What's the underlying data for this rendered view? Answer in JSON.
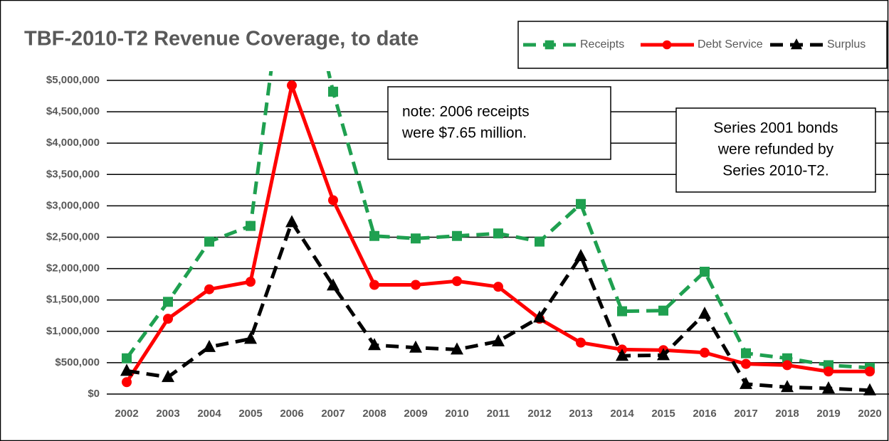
{
  "chart_data": {
    "type": "line",
    "title": "TBF-2010-T2 Revenue Coverage, to date",
    "categories": [
      "2002",
      "2003",
      "2004",
      "2005",
      "2006",
      "2007",
      "2008",
      "2009",
      "2010",
      "2011",
      "2012",
      "2013",
      "2014",
      "2015",
      "2016",
      "2017",
      "2018",
      "2019",
      "2020"
    ],
    "series": [
      {
        "name": "Receipts",
        "color": "#1fa050",
        "dash": true,
        "marker": "square",
        "values": [
          570000,
          1470000,
          2430000,
          2680000,
          7650000,
          4820000,
          2520000,
          2480000,
          2520000,
          2560000,
          2430000,
          3030000,
          1320000,
          1330000,
          1950000,
          650000,
          570000,
          460000,
          420000
        ]
      },
      {
        "name": "Debt Service",
        "color": "#ff0000",
        "dash": false,
        "marker": "circle",
        "values": [
          190000,
          1200000,
          1670000,
          1790000,
          4920000,
          3090000,
          1740000,
          1740000,
          1800000,
          1710000,
          1200000,
          820000,
          710000,
          700000,
          660000,
          480000,
          460000,
          360000,
          360000
        ]
      },
      {
        "name": "Surplus",
        "color": "#000000",
        "dash": true,
        "marker": "triangle",
        "values": [
          370000,
          270000,
          750000,
          880000,
          2740000,
          1730000,
          780000,
          740000,
          710000,
          840000,
          1220000,
          2200000,
          610000,
          620000,
          1280000,
          160000,
          110000,
          90000,
          60000
        ]
      }
    ],
    "ylim": [
      0,
      5000000
    ],
    "yticks": [
      {
        "value": 0,
        "label": "$0"
      },
      {
        "value": 500000,
        "label": "$500,000"
      },
      {
        "value": 1000000,
        "label": "$1,000,000"
      },
      {
        "value": 1500000,
        "label": "$1,500,000"
      },
      {
        "value": 2000000,
        "label": "$2,000,000"
      },
      {
        "value": 2500000,
        "label": "$2,500,000"
      },
      {
        "value": 3000000,
        "label": "$3,000,000"
      },
      {
        "value": 3500000,
        "label": "$3,500,000"
      },
      {
        "value": 4000000,
        "label": "$4,000,000"
      },
      {
        "value": 4500000,
        "label": "$4,500,000"
      },
      {
        "value": 5000000,
        "label": "$5,000,000"
      }
    ],
    "grid": true,
    "legend": "top-right",
    "annotations": [
      {
        "lines": [
          "note: 2006 receipts",
          "were $7.65 million."
        ]
      },
      {
        "lines": [
          "Series 2001 bonds",
          "were refunded by",
          "Series 2010-T2."
        ]
      }
    ]
  }
}
